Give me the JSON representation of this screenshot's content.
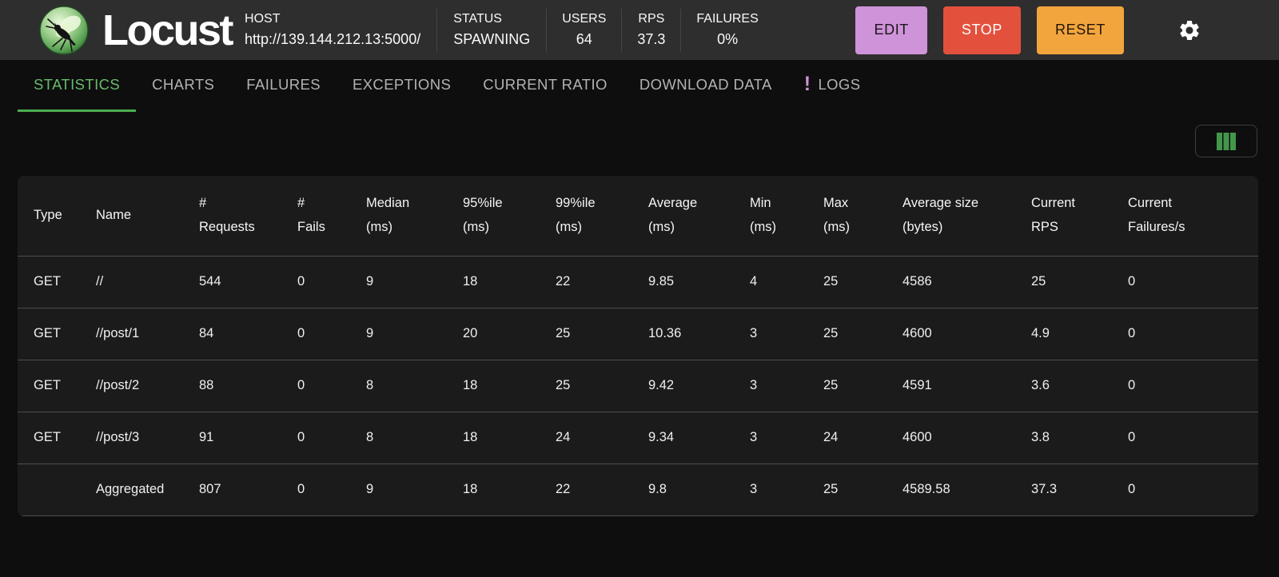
{
  "header": {
    "app_title": "Locust",
    "host": {
      "label": "HOST",
      "value": "http://139.144.212.13:5000/"
    },
    "status": {
      "label": "STATUS",
      "value": "SPAWNING"
    },
    "users": {
      "label": "USERS",
      "value": "64"
    },
    "rps": {
      "label": "RPS",
      "value": "37.3"
    },
    "failures": {
      "label": "FAILURES",
      "value": "0%"
    },
    "buttons": {
      "edit": "EDIT",
      "stop": "STOP",
      "reset": "RESET"
    },
    "icons": {
      "logo": "locust-logo",
      "settings": "gear-icon"
    },
    "colors": {
      "edit_bg": "#ce93d8",
      "stop_bg": "#e3513d",
      "reset_bg": "#f3a53d",
      "header_bg": "#2e2e2e",
      "accent_green": "#4caf50"
    }
  },
  "tabs": {
    "items": [
      {
        "label": "STATISTICS",
        "active": true
      },
      {
        "label": "CHARTS",
        "active": false
      },
      {
        "label": "FAILURES",
        "active": false
      },
      {
        "label": "EXCEPTIONS",
        "active": false
      },
      {
        "label": "CURRENT RATIO",
        "active": false
      },
      {
        "label": "DOWNLOAD DATA",
        "active": false
      },
      {
        "label": "LOGS",
        "active": false,
        "badge": "!"
      }
    ]
  },
  "toolbar": {
    "icons": {
      "columns": "columns-icon"
    },
    "columns_icon_color": "#42974a"
  },
  "table": {
    "columns": [
      "Type",
      "Name",
      "#\nRequests",
      "#\nFails",
      "Median\n(ms)",
      "95%ile\n(ms)",
      "99%ile\n(ms)",
      "Average\n(ms)",
      "Min\n(ms)",
      "Max\n(ms)",
      "Average size\n(bytes)",
      "Current\nRPS",
      "Current\nFailures/s"
    ],
    "rows": [
      [
        "GET",
        "//",
        "544",
        "0",
        "9",
        "18",
        "22",
        "9.85",
        "4",
        "25",
        "4586",
        "25",
        "0"
      ],
      [
        "GET",
        "//post/1",
        "84",
        "0",
        "9",
        "20",
        "25",
        "10.36",
        "3",
        "25",
        "4600",
        "4.9",
        "0"
      ],
      [
        "GET",
        "//post/2",
        "88",
        "0",
        "8",
        "18",
        "25",
        "9.42",
        "3",
        "25",
        "4591",
        "3.6",
        "0"
      ],
      [
        "GET",
        "//post/3",
        "91",
        "0",
        "8",
        "18",
        "24",
        "9.34",
        "3",
        "24",
        "4600",
        "3.8",
        "0"
      ],
      [
        "",
        "Aggregated",
        "807",
        "0",
        "9",
        "18",
        "22",
        "9.8",
        "3",
        "25",
        "4589.58",
        "37.3",
        "0"
      ]
    ]
  }
}
